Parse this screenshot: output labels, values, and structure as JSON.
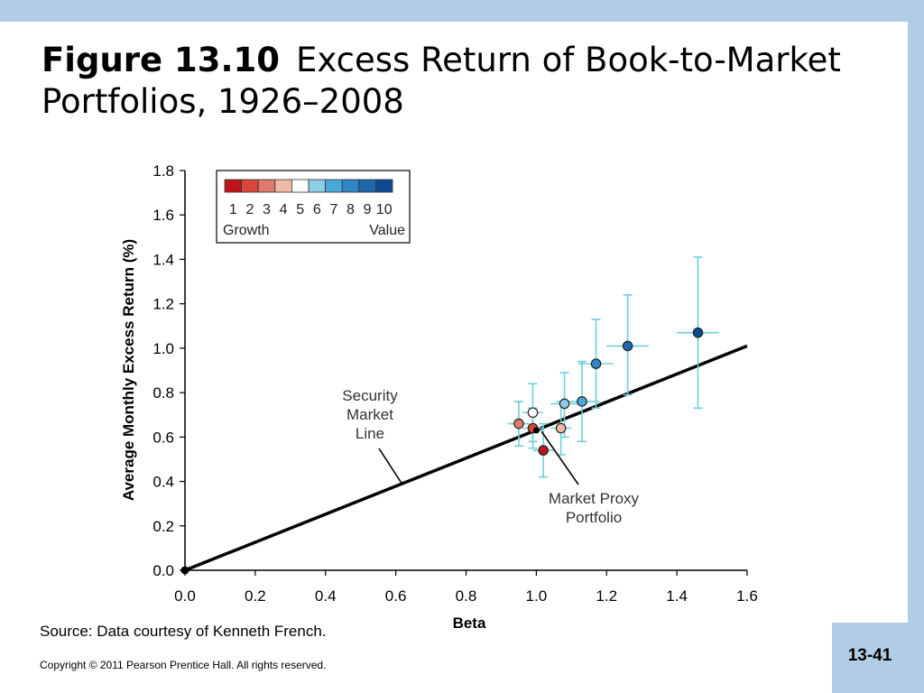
{
  "slide": {
    "figure_label": "Figure 13.10",
    "title_text": "Excess Return of Book-to-Market Portfolios, 1926–2008",
    "source": "Source: Data courtesy of Kenneth French.",
    "copyright": "Copyright © 2011 Pearson Prentice Hall. All rights reserved.",
    "page_number": "13-41"
  },
  "chart_data": {
    "type": "scatter",
    "xlabel": "Beta",
    "ylabel": "Average Monthly Excess Return (%)",
    "xlim": [
      0.0,
      1.6
    ],
    "ylim": [
      0.0,
      1.8
    ],
    "x_ticks": [
      "0.0",
      "0.2",
      "0.4",
      "0.6",
      "0.8",
      "1.0",
      "1.2",
      "1.4",
      "1.6"
    ],
    "y_ticks": [
      "0.0",
      "0.2",
      "0.4",
      "0.6",
      "0.8",
      "1.0",
      "1.2",
      "1.4",
      "1.6",
      "1.8"
    ],
    "legend": {
      "placement": "top-left",
      "numbers": [
        "1",
        "2",
        "3",
        "4",
        "5",
        "6",
        "7",
        "8",
        "9",
        "10"
      ],
      "colors": [
        "#c0141c",
        "#d9473c",
        "#e07a6a",
        "#f2b9a6",
        "#ffffff",
        "#8ecde8",
        "#4aa8d8",
        "#2f86c4",
        "#1f67ad",
        "#0e4a92"
      ],
      "left_label": "Growth",
      "right_label": "Value"
    },
    "security_market_line": {
      "x": [
        0.0,
        1.6
      ],
      "y": [
        0.0,
        1.01
      ]
    },
    "annotations": {
      "sml_label": [
        "Security",
        "Market",
        "Line"
      ],
      "market_proxy_label": [
        "Market Proxy",
        "Portfolio"
      ]
    },
    "market_proxy": {
      "x": 1.0,
      "y": 0.63
    },
    "portfolios": [
      {
        "id": 1,
        "beta": 1.02,
        "ret": 0.54,
        "x_err": [
          0.99,
          1.05
        ],
        "y_err": [
          0.42,
          0.66
        ]
      },
      {
        "id": 2,
        "beta": 0.99,
        "ret": 0.64,
        "x_err": [
          0.96,
          1.02
        ],
        "y_err": [
          0.55,
          0.73
        ]
      },
      {
        "id": 3,
        "beta": 0.95,
        "ret": 0.66,
        "x_err": [
          0.92,
          0.98
        ],
        "y_err": [
          0.56,
          0.76
        ]
      },
      {
        "id": 4,
        "beta": 1.07,
        "ret": 0.64,
        "x_err": [
          1.04,
          1.1
        ],
        "y_err": [
          0.52,
          0.76
        ]
      },
      {
        "id": 5,
        "beta": 0.99,
        "ret": 0.71,
        "x_err": [
          0.96,
          1.02
        ],
        "y_err": [
          0.58,
          0.84
        ]
      },
      {
        "id": 6,
        "beta": 1.08,
        "ret": 0.75,
        "x_err": [
          1.04,
          1.12
        ],
        "y_err": [
          0.6,
          0.89
        ]
      },
      {
        "id": 7,
        "beta": 1.13,
        "ret": 0.76,
        "x_err": [
          1.08,
          1.18
        ],
        "y_err": [
          0.58,
          0.94
        ]
      },
      {
        "id": 8,
        "beta": 1.17,
        "ret": 0.93,
        "x_err": [
          1.12,
          1.22
        ],
        "y_err": [
          0.73,
          1.13
        ]
      },
      {
        "id": 9,
        "beta": 1.26,
        "ret": 1.01,
        "x_err": [
          1.2,
          1.32
        ],
        "y_err": [
          0.79,
          1.24
        ]
      },
      {
        "id": 10,
        "beta": 1.46,
        "ret": 1.07,
        "x_err": [
          1.4,
          1.52
        ],
        "y_err": [
          0.73,
          1.41
        ]
      }
    ]
  }
}
